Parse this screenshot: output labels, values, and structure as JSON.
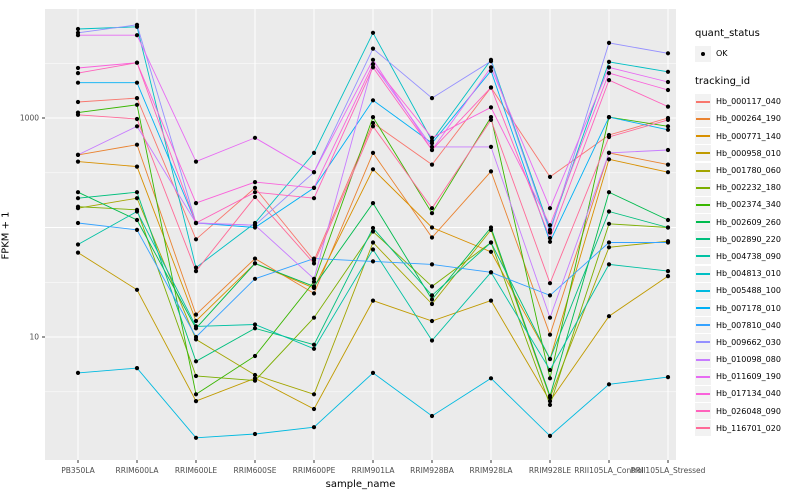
{
  "axes": {
    "x_title": "sample_name",
    "y_title": "FPKM + 1"
  },
  "legend": {
    "quant_status_title": "quant_status",
    "quant_status_ok_label": "OK",
    "tracking_title": "tracking_id"
  },
  "chart_data": {
    "type": "line",
    "xlabel": "sample_name",
    "ylabel": "FPKM + 1",
    "y_scale": "log10",
    "ylim": [
      0.75,
      9900
    ],
    "grid": true,
    "legend_position": "right",
    "panel_bg": "#EBEBEB",
    "gridline_color": "#FFFFFF",
    "point_color": "#000000",
    "y_ticks": [
      {
        "value": 1000,
        "label": "1000"
      },
      {
        "value": 10,
        "label": "10"
      }
    ],
    "y_major_gridlines": [
      1000,
      100,
      10
    ],
    "y_minor_gridlines": [
      3162,
      316,
      31.6,
      3.16
    ],
    "categories": [
      "PB350LA",
      "RRIM600LA",
      "RRIM600LE",
      "RRIM600SE",
      "RRIM600PE",
      "RRIM901LA",
      "RRIM928BA",
      "RRIM928LA",
      "RRIM928LE",
      "RRII105LA_Control",
      "RRII105LA_Stressed"
    ],
    "series": [
      {
        "name": "Hb_000117_040",
        "color": "#F8766D",
        "values": [
          1400,
          1520,
          78,
          230,
          50,
          900,
          375,
          1900,
          290,
          700,
          1000
        ]
      },
      {
        "name": "Hb_000264_190",
        "color": "#EA8331",
        "values": [
          460,
          570,
          16,
          52,
          25,
          480,
          81,
          325,
          10.5,
          480,
          375
        ]
      },
      {
        "name": "Hb_000771_140",
        "color": "#D89000",
        "values": [
          400,
          360,
          14,
          47,
          28,
          340,
          100,
          60,
          6.3,
          420,
          320
        ]
      },
      {
        "name": "Hb_000958_010",
        "color": "#C09B00",
        "values": [
          59,
          27,
          2.6,
          4.2,
          2.2,
          21.5,
          14,
          21.5,
          2.6,
          15.5,
          36
        ]
      },
      {
        "name": "Hb_001780_060",
        "color": "#A3A500",
        "values": [
          150,
          185,
          9.5,
          4.5,
          3,
          73,
          20,
          95,
          2.8,
          66,
          75
        ]
      },
      {
        "name": "Hb_002232_180",
        "color": "#7CAE00",
        "values": [
          155,
          145,
          4.4,
          4,
          15,
          92,
          29,
          73,
          2.4,
          108,
          100
        ]
      },
      {
        "name": "Hb_002374_340",
        "color": "#39B600",
        "values": [
          1120,
          1320,
          3,
          6.7,
          32,
          1020,
          135,
          1020,
          4.2,
          1020,
          840
        ]
      },
      {
        "name": "Hb_002609_260",
        "color": "#00BB4E",
        "values": [
          210,
          117,
          12,
          47,
          29,
          167,
          22,
          100,
          2.9,
          210,
          117
        ]
      },
      {
        "name": "Hb_002890_220",
        "color": "#00BF7D",
        "values": [
          185,
          210,
          6,
          12,
          8.5,
          99,
          24,
          73,
          6.3,
          140,
          100
        ]
      },
      {
        "name": "Hb_004738_090",
        "color": "#00C1A3",
        "values": [
          70,
          140,
          12.5,
          13,
          7.8,
          63,
          9.3,
          39,
          5,
          46,
          40
        ]
      },
      {
        "name": "Hb_004813_010",
        "color": "#00BFC4",
        "values": [
          6500,
          6800,
          43,
          110,
          480,
          6000,
          620,
          3400,
          95,
          3250,
          2640
        ]
      },
      {
        "name": "Hb_005488_100",
        "color": "#00BAE0",
        "values": [
          4.7,
          5.2,
          1.2,
          1.3,
          1.5,
          4.7,
          1.9,
          4.2,
          1.25,
          3.7,
          4.3
        ]
      },
      {
        "name": "Hb_007178_010",
        "color": "#00B0F6",
        "values": [
          2100,
          2100,
          110,
          100,
          230,
          1450,
          590,
          2700,
          74,
          1020,
          780
        ]
      },
      {
        "name": "Hb_007810_040",
        "color": "#35A2FF",
        "values": [
          110,
          95,
          10,
          34,
          52,
          49,
          46,
          39,
          24,
          73,
          73
        ]
      },
      {
        "name": "Hb_009662_030",
        "color": "#9590FF",
        "values": [
          6000,
          7100,
          110,
          105,
          320,
          4300,
          1520,
          3300,
          90,
          4850,
          3900
        ]
      },
      {
        "name": "Hb_010098_080",
        "color": "#C77CFF",
        "values": [
          460,
          840,
          110,
          105,
          34,
          3100,
          545,
          545,
          15,
          480,
          510
        ]
      },
      {
        "name": "Hb_011609_190",
        "color": "#E76BF3",
        "values": [
          5700,
          5700,
          400,
          660,
          320,
          3400,
          510,
          2900,
          150,
          2900,
          2130
        ]
      },
      {
        "name": "Hb_017134_040",
        "color": "#FA62DB",
        "values": [
          2860,
          3200,
          167,
          260,
          230,
          3100,
          660,
          1250,
          105,
          2570,
          1800
        ]
      },
      {
        "name": "Hb_026048_090",
        "color": "#FF62BC",
        "values": [
          2570,
          3200,
          110,
          210,
          185,
          2900,
          510,
          1900,
          80,
          2220,
          1270
        ]
      },
      {
        "name": "Hb_116701_020",
        "color": "#FF6A98",
        "values": [
          1070,
          980,
          40,
          190,
          47,
          840,
          150,
          960,
          31,
          670,
          960
        ]
      }
    ]
  }
}
